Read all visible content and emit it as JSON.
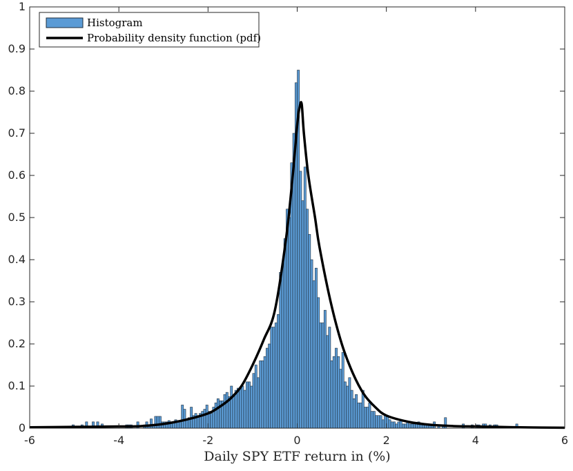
{
  "chart_data": {
    "type": "bar",
    "title": "",
    "xlabel": "Daily SPY ETF return in (%)",
    "ylabel": "",
    "xlim": [
      -6,
      6
    ],
    "ylim": [
      0,
      1
    ],
    "xticks": [
      -6,
      -4,
      -2,
      0,
      2,
      4,
      6
    ],
    "yticks": [
      0,
      0.1,
      0.2,
      0.3,
      0.4,
      0.5,
      0.6,
      0.7,
      0.8,
      0.9,
      1
    ],
    "grid": false,
    "legend_location": "top-left",
    "colors": {
      "histogram_fill": "#5b9bd5",
      "histogram_edge": "#1f2d3a",
      "pdf_line": "#000000"
    },
    "histogram": {
      "name": "Histogram",
      "bin_width": 0.05,
      "bin_centers": [
        -5.025,
        -4.825,
        -4.725,
        -4.575,
        -4.475,
        -4.375,
        -3.825,
        -3.775,
        -3.725,
        -3.575,
        -3.425,
        -3.375,
        -3.325,
        -3.275,
        -3.225,
        -3.175,
        -3.125,
        -3.075,
        -3.025,
        -2.975,
        -2.925,
        -2.875,
        -2.825,
        -2.775,
        -2.725,
        -2.675,
        -2.625,
        -2.575,
        -2.525,
        -2.475,
        -2.425,
        -2.375,
        -2.325,
        -2.275,
        -2.225,
        -2.175,
        -2.125,
        -2.075,
        -2.025,
        -1.975,
        -1.925,
        -1.875,
        -1.825,
        -1.775,
        -1.725,
        -1.675,
        -1.625,
        -1.575,
        -1.525,
        -1.475,
        -1.425,
        -1.375,
        -1.325,
        -1.275,
        -1.225,
        -1.175,
        -1.125,
        -1.075,
        -1.025,
        -0.975,
        -0.925,
        -0.875,
        -0.825,
        -0.775,
        -0.725,
        -0.675,
        -0.625,
        -0.575,
        -0.525,
        -0.475,
        -0.425,
        -0.375,
        -0.325,
        -0.275,
        -0.225,
        -0.175,
        -0.125,
        -0.075,
        -0.025,
        0.025,
        0.075,
        0.125,
        0.175,
        0.225,
        0.275,
        0.325,
        0.375,
        0.425,
        0.475,
        0.525,
        0.575,
        0.625,
        0.675,
        0.725,
        0.775,
        0.825,
        0.875,
        0.925,
        0.975,
        1.025,
        1.075,
        1.125,
        1.175,
        1.225,
        1.275,
        1.325,
        1.375,
        1.425,
        1.475,
        1.525,
        1.575,
        1.625,
        1.675,
        1.725,
        1.775,
        1.825,
        1.875,
        1.925,
        1.975,
        2.025,
        2.075,
        2.125,
        2.175,
        2.225,
        2.275,
        2.325,
        2.375,
        2.425,
        2.475,
        2.525,
        2.575,
        2.625,
        2.675,
        2.725,
        2.775,
        2.825,
        2.875,
        2.925,
        2.975,
        3.025,
        3.075,
        3.175,
        3.275,
        3.325,
        3.725,
        3.925,
        4.025,
        4.075,
        4.175,
        4.225,
        4.325,
        4.425,
        4.475,
        4.925
      ],
      "values": [
        0.008,
        0.008,
        0.015,
        0.015,
        0.015,
        0.01,
        0.008,
        0.008,
        0.008,
        0.015,
        0.008,
        0.015,
        0.008,
        0.022,
        0.008,
        0.028,
        0.028,
        0.028,
        0.015,
        0.015,
        0.015,
        0.018,
        0.015,
        0.015,
        0.02,
        0.015,
        0.015,
        0.055,
        0.045,
        0.022,
        0.025,
        0.05,
        0.03,
        0.035,
        0.03,
        0.035,
        0.04,
        0.045,
        0.055,
        0.04,
        0.035,
        0.05,
        0.06,
        0.07,
        0.065,
        0.065,
        0.08,
        0.085,
        0.075,
        0.1,
        0.08,
        0.09,
        0.095,
        0.095,
        0.1,
        0.09,
        0.11,
        0.11,
        0.1,
        0.13,
        0.15,
        0.12,
        0.16,
        0.16,
        0.17,
        0.19,
        0.2,
        0.24,
        0.24,
        0.25,
        0.27,
        0.37,
        0.39,
        0.45,
        0.52,
        0.5,
        0.63,
        0.7,
        0.82,
        0.85,
        0.61,
        0.54,
        0.62,
        0.52,
        0.46,
        0.4,
        0.35,
        0.38,
        0.31,
        0.25,
        0.25,
        0.28,
        0.22,
        0.24,
        0.16,
        0.17,
        0.19,
        0.17,
        0.14,
        0.18,
        0.11,
        0.1,
        0.12,
        0.09,
        0.07,
        0.08,
        0.06,
        0.06,
        0.09,
        0.05,
        0.05,
        0.06,
        0.04,
        0.04,
        0.03,
        0.03,
        0.03,
        0.02,
        0.03,
        0.03,
        0.02,
        0.015,
        0.015,
        0.01,
        0.015,
        0.02,
        0.01,
        0.01,
        0.015,
        0.01,
        0.01,
        0.01,
        0.01,
        0.015,
        0.01,
        0.01,
        0.008,
        0.008,
        0.01,
        0.008,
        0.015,
        0.008,
        0.008,
        0.025,
        0.01,
        0.008,
        0.008,
        0.008,
        0.01,
        0.01,
        0.008,
        0.008,
        0.008,
        0.01,
        0.01
      ]
    },
    "pdf": {
      "name": "Probability density function (pdf)",
      "x": [
        -6,
        -5,
        -4,
        -3.5,
        -3,
        -2.5,
        -2,
        -1.75,
        -1.5,
        -1.25,
        -1,
        -0.75,
        -0.5,
        -0.25,
        -0.1,
        0,
        0.05,
        0.1,
        0.15,
        0.25,
        0.4,
        0.5,
        0.75,
        1,
        1.25,
        1.5,
        1.75,
        2,
        2.5,
        3,
        3.5,
        4,
        4.5,
        5,
        6
      ],
      "y": [
        0.002,
        0.003,
        0.004,
        0.005,
        0.01,
        0.02,
        0.035,
        0.05,
        0.07,
        0.1,
        0.15,
        0.21,
        0.28,
        0.45,
        0.6,
        0.72,
        0.76,
        0.77,
        0.7,
        0.6,
        0.5,
        0.43,
        0.3,
        0.2,
        0.13,
        0.08,
        0.05,
        0.03,
        0.015,
        0.008,
        0.005,
        0.004,
        0.003,
        0.002,
        0.001
      ]
    },
    "legend": [
      "Histogram",
      "Probability density function (pdf)"
    ]
  }
}
